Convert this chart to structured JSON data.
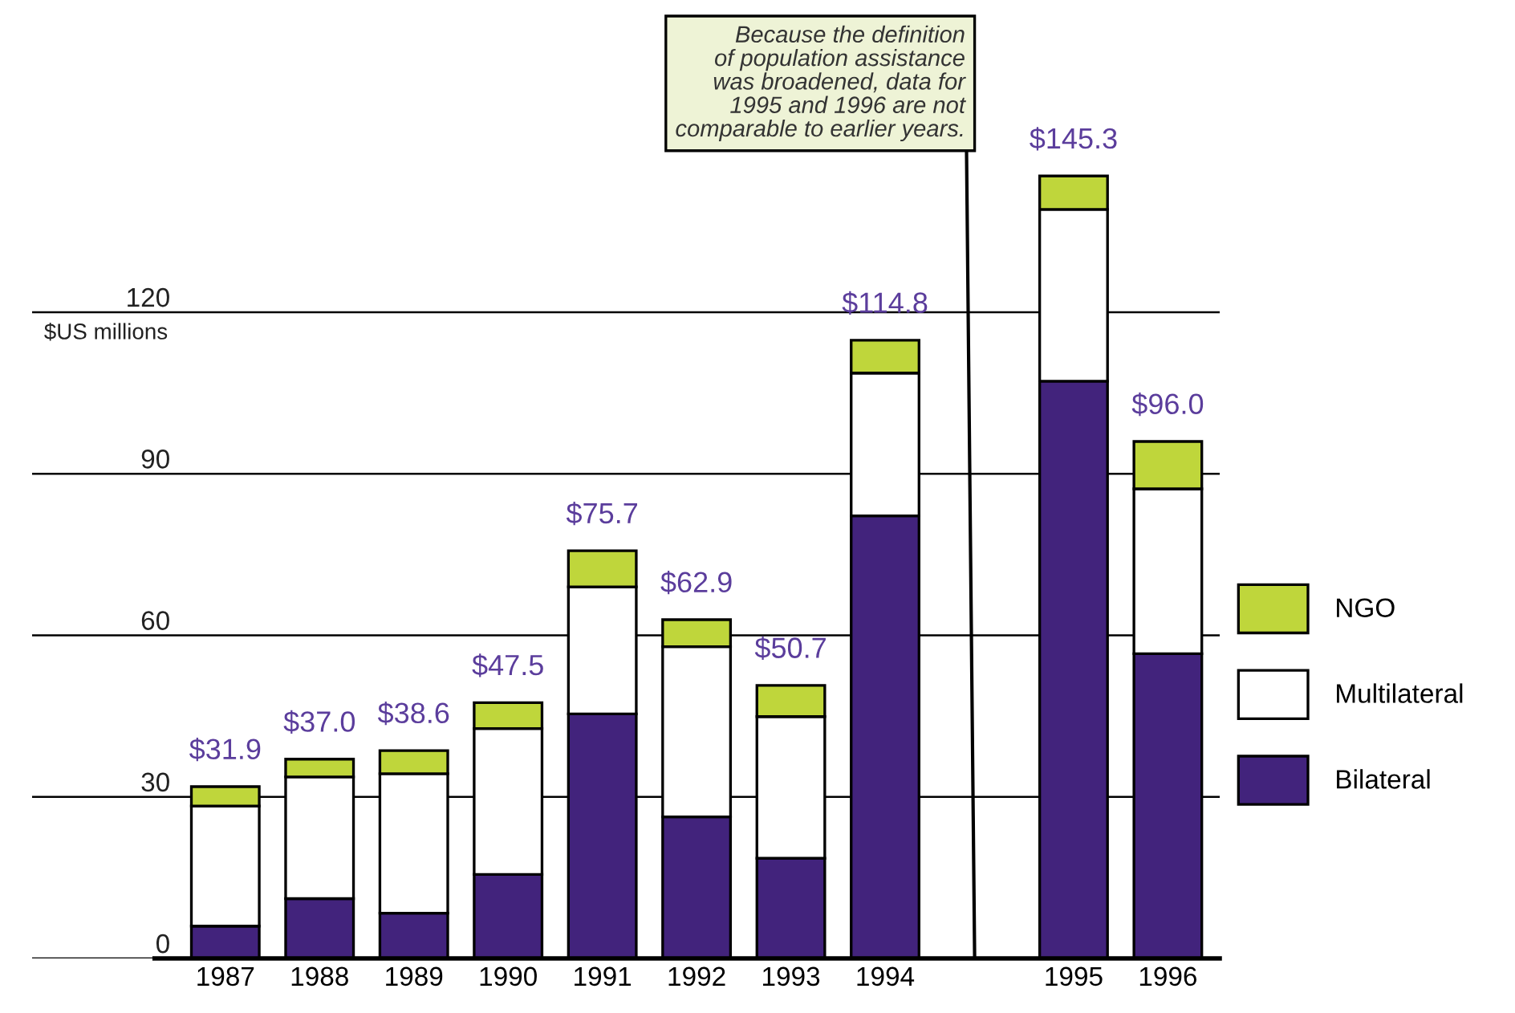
{
  "chart_data": {
    "type": "bar",
    "stacked": true,
    "ylabel": "$US millions",
    "categories": [
      "1987",
      "1988",
      "1989",
      "1990",
      "1991",
      "1992",
      "1993",
      "1994",
      null,
      "1995",
      "1996"
    ],
    "series": [
      {
        "name": "Bilateral",
        "color": "#42237c",
        "values": [
          6.0,
          11.1,
          8.4,
          15.6,
          45.4,
          26.3,
          18.6,
          82.2,
          null,
          107.2,
          56.6
        ]
      },
      {
        "name": "Multilateral",
        "color": "#ffffff",
        "values": [
          22.3,
          22.6,
          25.9,
          27.1,
          23.6,
          31.6,
          26.3,
          26.5,
          null,
          31.9,
          30.6
        ]
      },
      {
        "name": "NGO",
        "color": "#bfd63b",
        "values": [
          3.6,
          3.3,
          4.3,
          4.8,
          6.7,
          5.0,
          5.8,
          6.1,
          null,
          6.2,
          8.8
        ]
      }
    ],
    "totals": [
      "$31.9",
      "$37.0",
      "$38.6",
      "$47.5",
      "$75.7",
      "$62.9",
      "$50.7",
      "$114.8",
      null,
      "$145.3",
      "$96.0"
    ],
    "ylim": [
      0,
      175
    ],
    "yticks": [
      0,
      30,
      60,
      90,
      120
    ],
    "grid": "y",
    "legend": "right",
    "annotations": [
      "Because the definition\nof population assistance\nwas broadened, data for\n1995 and 1996 are not\ncomparable to earlier years."
    ]
  }
}
